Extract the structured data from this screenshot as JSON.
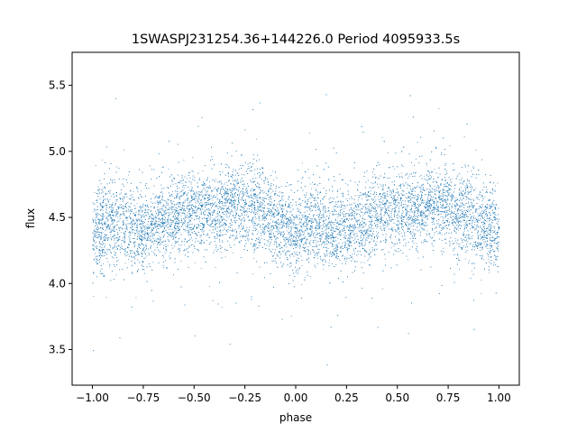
{
  "chart_data": {
    "type": "scatter",
    "title": "1SWASPJ231254.36+144226.0 Period 4095933.5s",
    "xlabel": "phase",
    "ylabel": "flux",
    "xlim": [
      -1.1,
      1.1
    ],
    "ylim": [
      3.23,
      5.75
    ],
    "xticks": [
      -1.0,
      -0.75,
      -0.5,
      -0.25,
      0.0,
      0.25,
      0.5,
      0.75,
      1.0
    ],
    "xtick_labels": [
      "−1.00",
      "−0.75",
      "−0.50",
      "−0.25",
      "0.00",
      "0.25",
      "0.50",
      "0.75",
      "1.00"
    ],
    "yticks": [
      3.5,
      4.0,
      4.5,
      5.0,
      5.5
    ],
    "ytick_labels": [
      "3.5",
      "4.0",
      "4.5",
      "5.0",
      "5.5"
    ],
    "grid": false,
    "marker_color": "#1f77b4",
    "series": [
      {
        "phase_profile": [
          {
            "x": -1.0,
            "mean": 4.38,
            "sd": 0.15
          },
          {
            "x": -0.9,
            "mean": 4.47,
            "sd": 0.17
          },
          {
            "x": -0.8,
            "mean": 4.44,
            "sd": 0.16
          },
          {
            "x": -0.75,
            "mean": 4.4,
            "sd": 0.15
          },
          {
            "x": -0.6,
            "mean": 4.53,
            "sd": 0.15
          },
          {
            "x": -0.5,
            "mean": 4.55,
            "sd": 0.15
          },
          {
            "x": -0.4,
            "mean": 4.55,
            "sd": 0.14
          },
          {
            "x": -0.3,
            "mean": 4.6,
            "sd": 0.15
          },
          {
            "x": -0.2,
            "mean": 4.57,
            "sd": 0.16
          },
          {
            "x": -0.1,
            "mean": 4.45,
            "sd": 0.15
          },
          {
            "x": 0.0,
            "mean": 4.4,
            "sd": 0.15
          },
          {
            "x": 0.1,
            "mean": 4.45,
            "sd": 0.16
          },
          {
            "x": 0.2,
            "mean": 4.4,
            "sd": 0.15
          },
          {
            "x": 0.25,
            "mean": 4.42,
            "sd": 0.15
          },
          {
            "x": 0.4,
            "mean": 4.53,
            "sd": 0.15
          },
          {
            "x": 0.5,
            "mean": 4.55,
            "sd": 0.15
          },
          {
            "x": 0.6,
            "mean": 4.57,
            "sd": 0.14
          },
          {
            "x": 0.7,
            "mean": 4.6,
            "sd": 0.15
          },
          {
            "x": 0.8,
            "mean": 4.55,
            "sd": 0.16
          },
          {
            "x": 0.9,
            "mean": 4.45,
            "sd": 0.15
          },
          {
            "x": 1.0,
            "mean": 4.4,
            "sd": 0.15
          }
        ],
        "n_points": 14000,
        "x_range": [
          -1.0,
          1.0
        ],
        "y_range": [
          3.35,
          5.62
        ]
      }
    ]
  }
}
